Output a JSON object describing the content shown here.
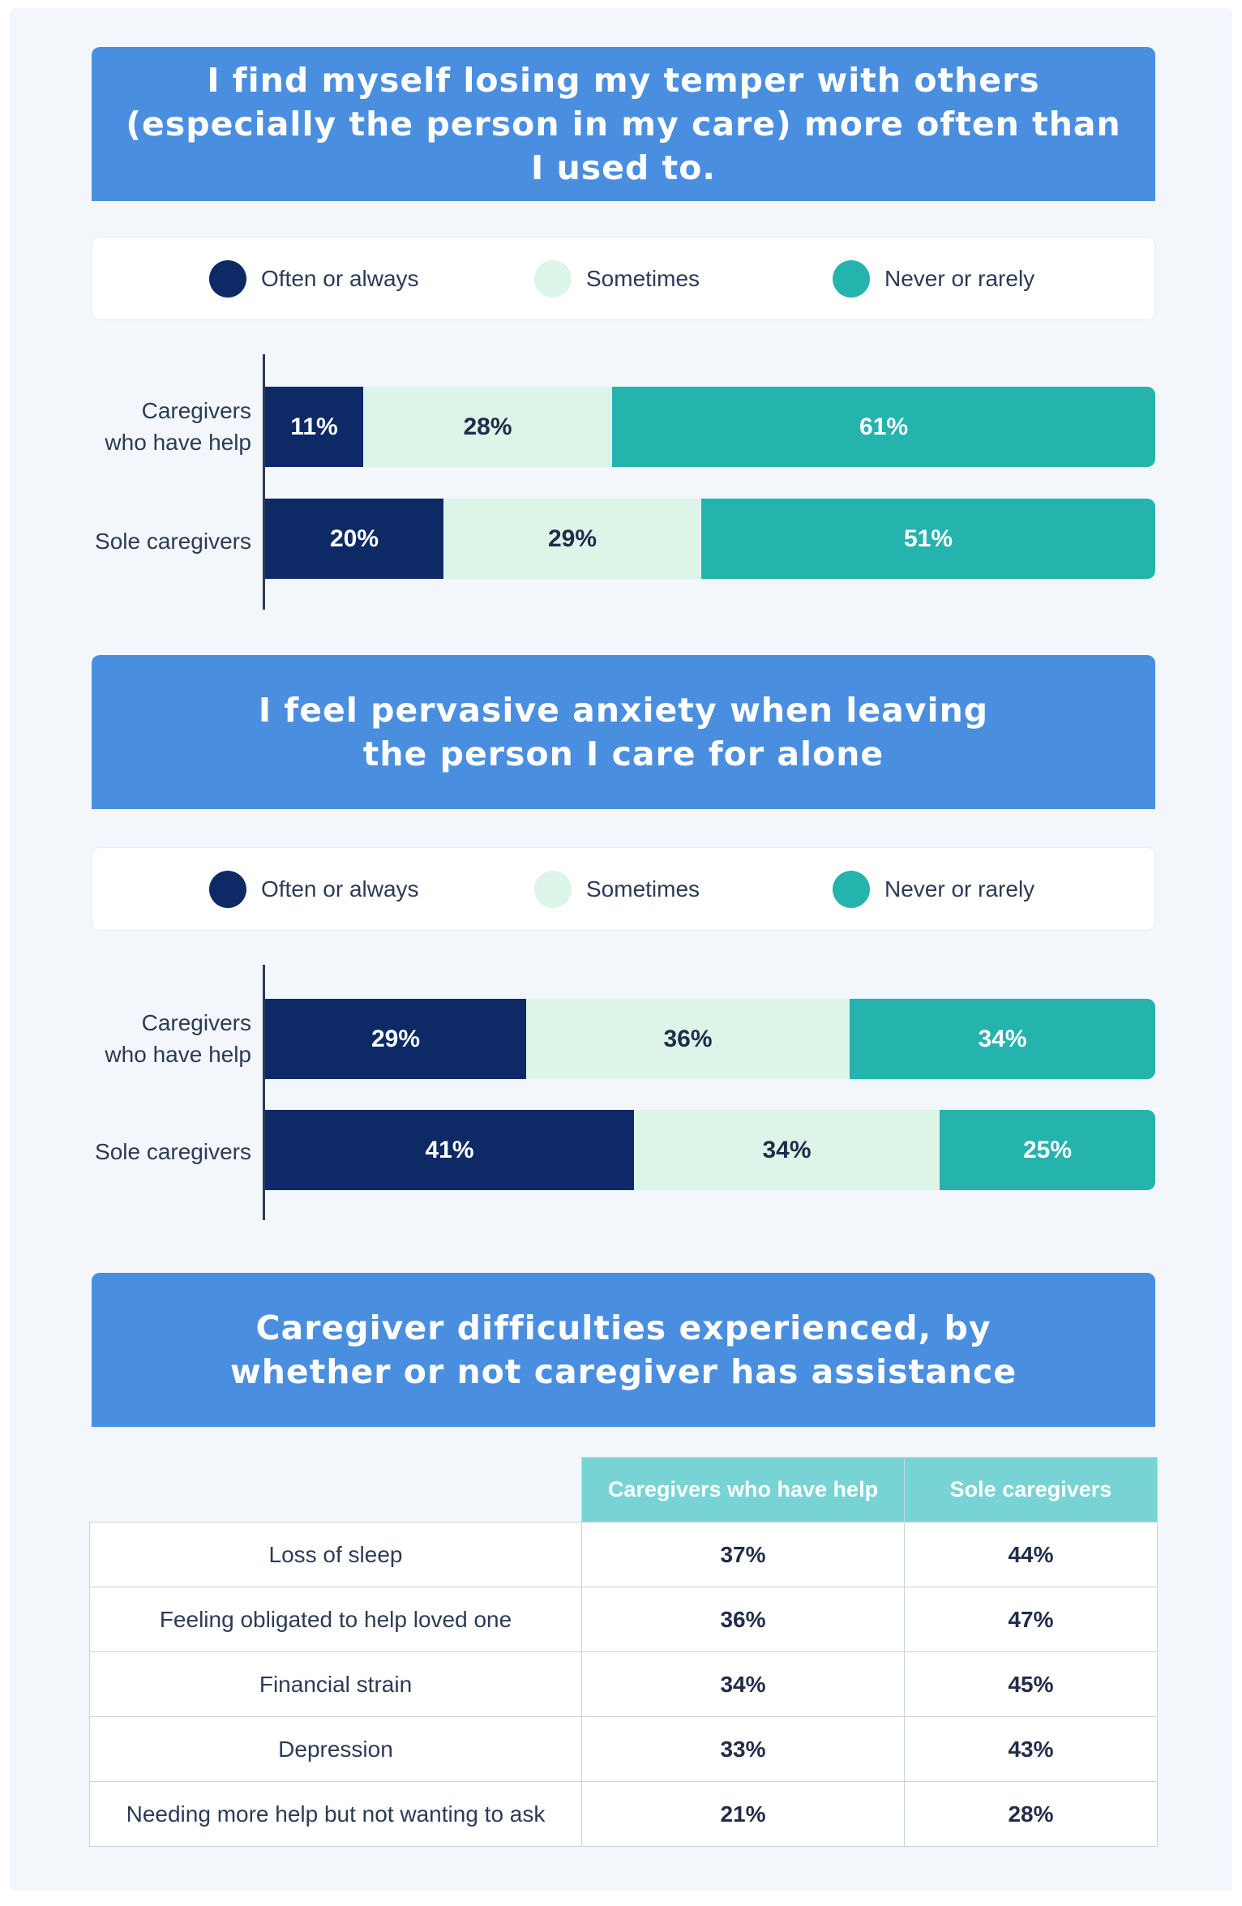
{
  "colors": {
    "often": "#0d2a66",
    "sometimes": "#dcf5e8",
    "never": "#25b3ae",
    "banner": "#4a8ee0",
    "table_header": "#78d4d4"
  },
  "chart_data": [
    {
      "type": "bar",
      "stacked": true,
      "orientation": "horizontal",
      "title_lines": [
        "I find myself losing my temper with others",
        "(especially the person in my care) more often than",
        "I used to."
      ],
      "legend": [
        "Often or always",
        "Sometimes",
        "Never or rarely"
      ],
      "legend_position": "top",
      "categories": [
        {
          "lines": [
            "Caregivers",
            "who have help"
          ]
        },
        {
          "lines": [
            "Sole caregivers"
          ]
        }
      ],
      "series": [
        {
          "name": "Often or always",
          "color": "#0d2a66",
          "text_color": "#ffffff",
          "values": [
            11,
            20
          ],
          "labels": [
            "11%",
            "20%"
          ]
        },
        {
          "name": "Sometimes",
          "color": "#dcf5e8",
          "text_color": "#1f2d4a",
          "values": [
            28,
            29
          ],
          "labels": [
            "28%",
            "29%"
          ]
        },
        {
          "name": "Never or rarely",
          "color": "#25b3ae",
          "text_color": "#ffffff",
          "values": [
            61,
            51
          ],
          "labels": [
            "61%",
            "51%"
          ]
        }
      ],
      "xlim": [
        0,
        100
      ]
    },
    {
      "type": "bar",
      "stacked": true,
      "orientation": "horizontal",
      "title_lines": [
        "I feel pervasive anxiety when leaving",
        "the person I care for alone"
      ],
      "legend": [
        "Often or always",
        "Sometimes",
        "Never or rarely"
      ],
      "legend_position": "top",
      "categories": [
        {
          "lines": [
            "Caregivers",
            "who have help"
          ]
        },
        {
          "lines": [
            "Sole caregivers"
          ]
        }
      ],
      "series": [
        {
          "name": "Often or always",
          "color": "#0d2a66",
          "text_color": "#ffffff",
          "values": [
            29,
            41
          ],
          "labels": [
            "29%",
            "41%"
          ]
        },
        {
          "name": "Sometimes",
          "color": "#dcf5e8",
          "text_color": "#1f2d4a",
          "values": [
            36,
            34
          ],
          "labels": [
            "36%",
            "34%"
          ]
        },
        {
          "name": "Never or rarely",
          "color": "#25b3ae",
          "text_color": "#ffffff",
          "values": [
            34,
            25
          ],
          "labels": [
            "34%",
            "25%"
          ]
        }
      ],
      "xlim": [
        0,
        99
      ]
    },
    {
      "type": "table",
      "title_lines": [
        "Caregiver difficulties experienced, by",
        "whether or not caregiver has assistance"
      ],
      "columns": [
        "",
        "Caregivers who have help",
        "Sole caregivers"
      ],
      "rows": [
        {
          "label": "Loss of sleep",
          "values": [
            "37%",
            "44%"
          ]
        },
        {
          "label": "Feeling obligated to help loved one",
          "values": [
            "36%",
            "47%"
          ]
        },
        {
          "label": "Financial strain",
          "values": [
            "34%",
            "45%"
          ]
        },
        {
          "label": "Depression",
          "values": [
            "33%",
            "43%"
          ]
        },
        {
          "label": "Needing more help but not wanting to ask",
          "values": [
            "21%",
            "28%"
          ]
        }
      ]
    }
  ]
}
